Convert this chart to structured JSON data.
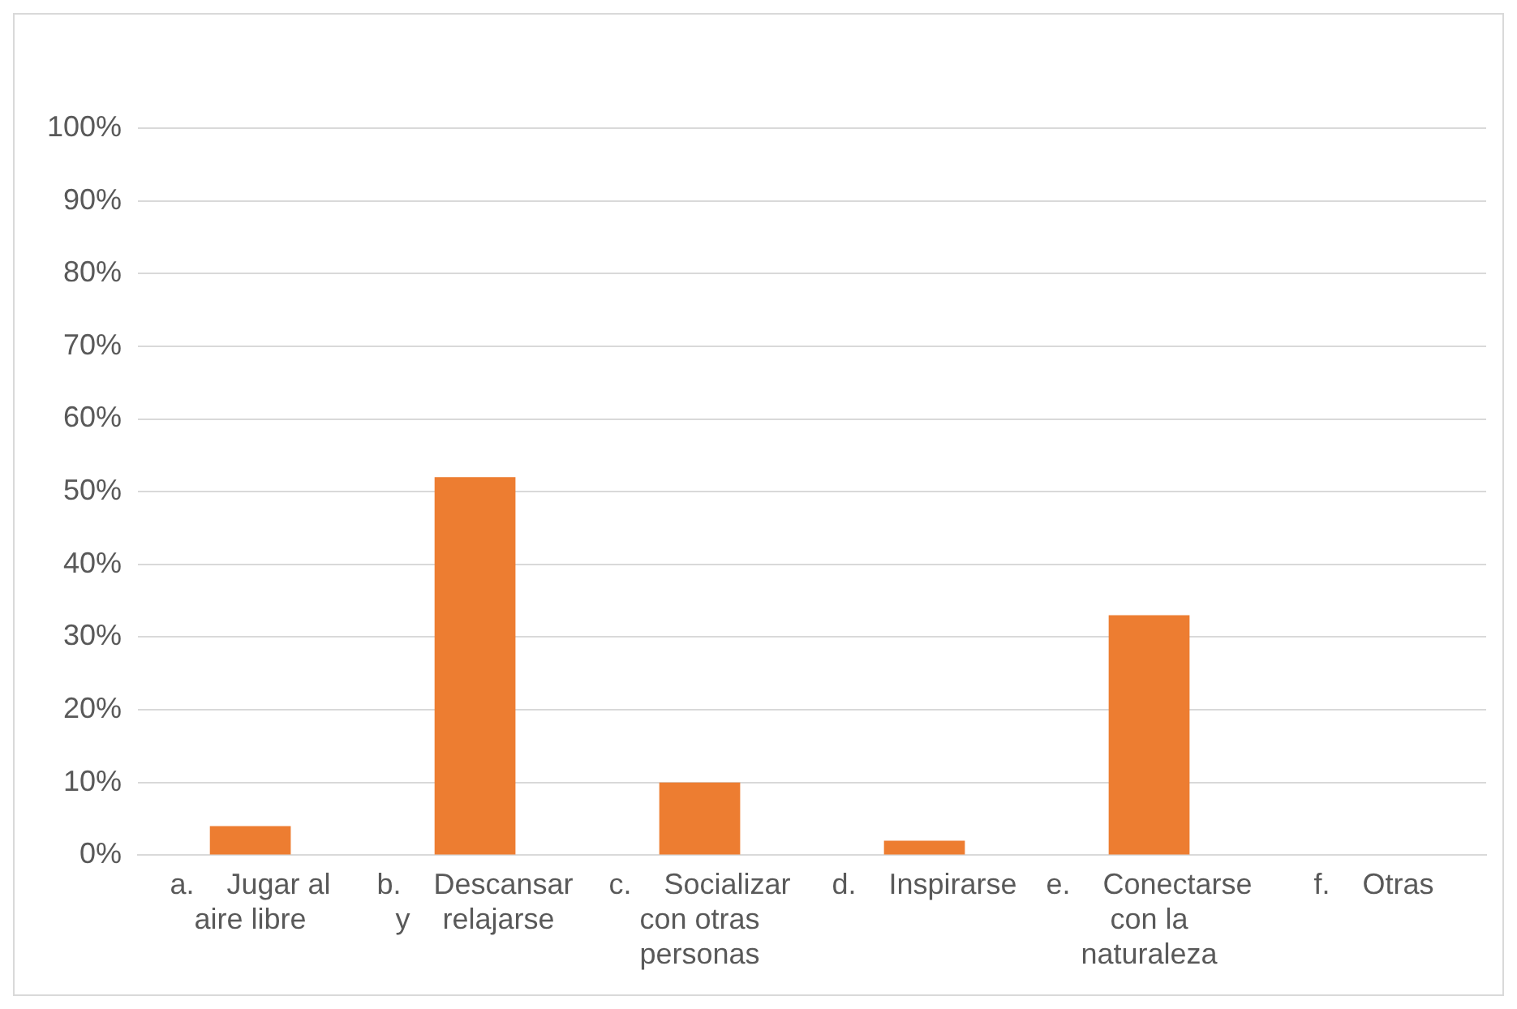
{
  "chart_data": {
    "type": "bar",
    "categories": [
      "a.      Jugar al aire libre",
      "b.      Descansar y relajarse",
      "c.      Socializar con otras personas",
      "d.      Inspirarse",
      "e.      Conectarse con la naturaleza",
      "f.      Otras"
    ],
    "values": [
      4,
      52,
      10,
      2,
      33,
      0
    ],
    "color": "#ed7d31",
    "ylim": [
      0,
      100
    ],
    "yticks": [
      {
        "value": 0,
        "label": "0%"
      },
      {
        "value": 10,
        "label": "10%"
      },
      {
        "value": 20,
        "label": "20%"
      },
      {
        "value": 30,
        "label": "30%"
      },
      {
        "value": 40,
        "label": "40%"
      },
      {
        "value": 50,
        "label": "50%"
      },
      {
        "value": 60,
        "label": "60%"
      },
      {
        "value": 70,
        "label": "70%"
      },
      {
        "value": 80,
        "label": "80%"
      },
      {
        "value": 90,
        "label": "90%"
      },
      {
        "value": 100,
        "label": "100%"
      }
    ],
    "grid": "y",
    "legend": false
  }
}
